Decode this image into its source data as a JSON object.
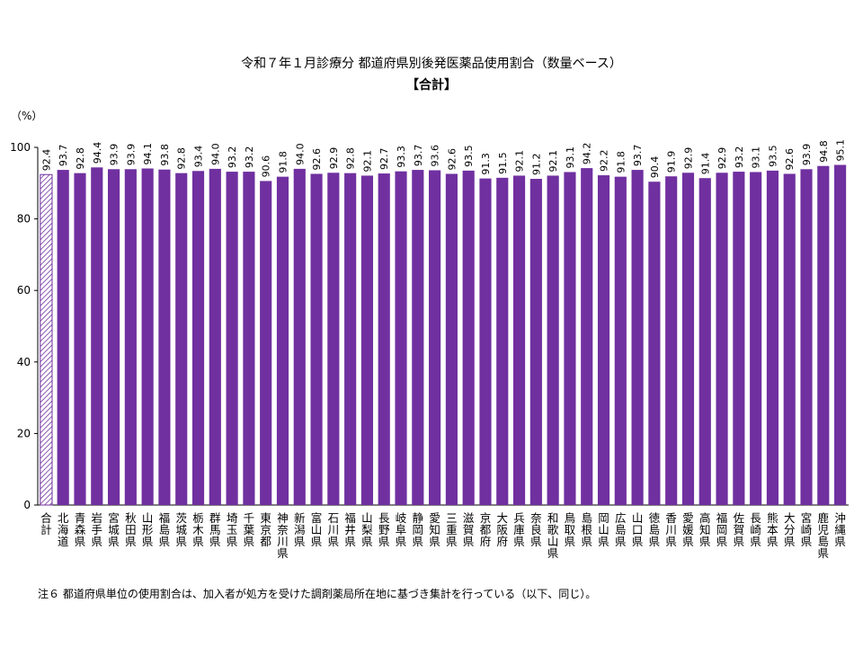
{
  "chart_data": {
    "type": "bar",
    "title": "令和７年１月診療分 都道府県別後発医薬品使用割合（数量ベース）",
    "subtitle": "【合計】",
    "ylabel": "（%）",
    "ylim": [
      0,
      100
    ],
    "yticks": [
      0,
      20,
      40,
      60,
      80,
      100
    ],
    "categories": [
      "合計",
      "北海道",
      "青森県",
      "岩手県",
      "宮城県",
      "秋田県",
      "山形県",
      "福島県",
      "茨城県",
      "栃木県",
      "群馬県",
      "埼玉県",
      "千葉県",
      "東京都",
      "神奈川県",
      "新潟県",
      "富山県",
      "石川県",
      "福井県",
      "山梨県",
      "長野県",
      "岐阜県",
      "静岡県",
      "愛知県",
      "三重県",
      "滋賀県",
      "京都府",
      "大阪府",
      "兵庫県",
      "奈良県",
      "和歌山県",
      "鳥取県",
      "島根県",
      "岡山県",
      "広島県",
      "山口県",
      "徳島県",
      "香川県",
      "愛媛県",
      "高知県",
      "福岡県",
      "佐賀県",
      "長崎県",
      "熊本県",
      "大分県",
      "宮崎県",
      "鹿児島県",
      "沖縄県"
    ],
    "values": [
      92.4,
      93.7,
      92.8,
      94.4,
      93.9,
      93.9,
      94.1,
      93.8,
      92.8,
      93.4,
      94.0,
      93.2,
      93.2,
      90.6,
      91.8,
      94.0,
      92.6,
      92.9,
      92.8,
      92.1,
      92.7,
      93.3,
      93.7,
      93.6,
      92.6,
      93.5,
      91.3,
      91.5,
      92.1,
      91.2,
      92.1,
      93.1,
      94.2,
      92.2,
      91.8,
      93.7,
      90.4,
      91.9,
      92.9,
      91.4,
      92.9,
      93.2,
      93.1,
      93.5,
      92.6,
      93.9,
      94.8,
      95.1
    ],
    "value_labels": [
      "92.4",
      "93.7",
      "92.8",
      "94.4",
      "93.9",
      "93.9",
      "94.1",
      "93.8",
      "92.8",
      "93.4",
      "94.0",
      "93.2",
      "93.2",
      "90.6",
      "91.8",
      "94.0",
      "92.6",
      "92.9",
      "92.8",
      "92.1",
      "92.7",
      "93.3",
      "93.7",
      "93.6",
      "92.6",
      "93.5",
      "91.3",
      "91.5",
      "92.1",
      "91.2",
      "92.1",
      "93.1",
      "94.2",
      "92.2",
      "91.8",
      "93.7",
      "90.4",
      "91.9",
      "92.9",
      "91.4",
      "92.9",
      "93.2",
      "93.1",
      "93.5",
      "92.6",
      "93.9",
      "94.8",
      "95.1"
    ],
    "bar_color": "#7030a0",
    "total_bar_style": "hatched",
    "grid": false,
    "legend": "none"
  },
  "footnote": "注６ 都道府県単位の使用割合は、加入者が処方を受けた調剤薬局所在地に基づき集計を行っている（以下、同じ）。"
}
